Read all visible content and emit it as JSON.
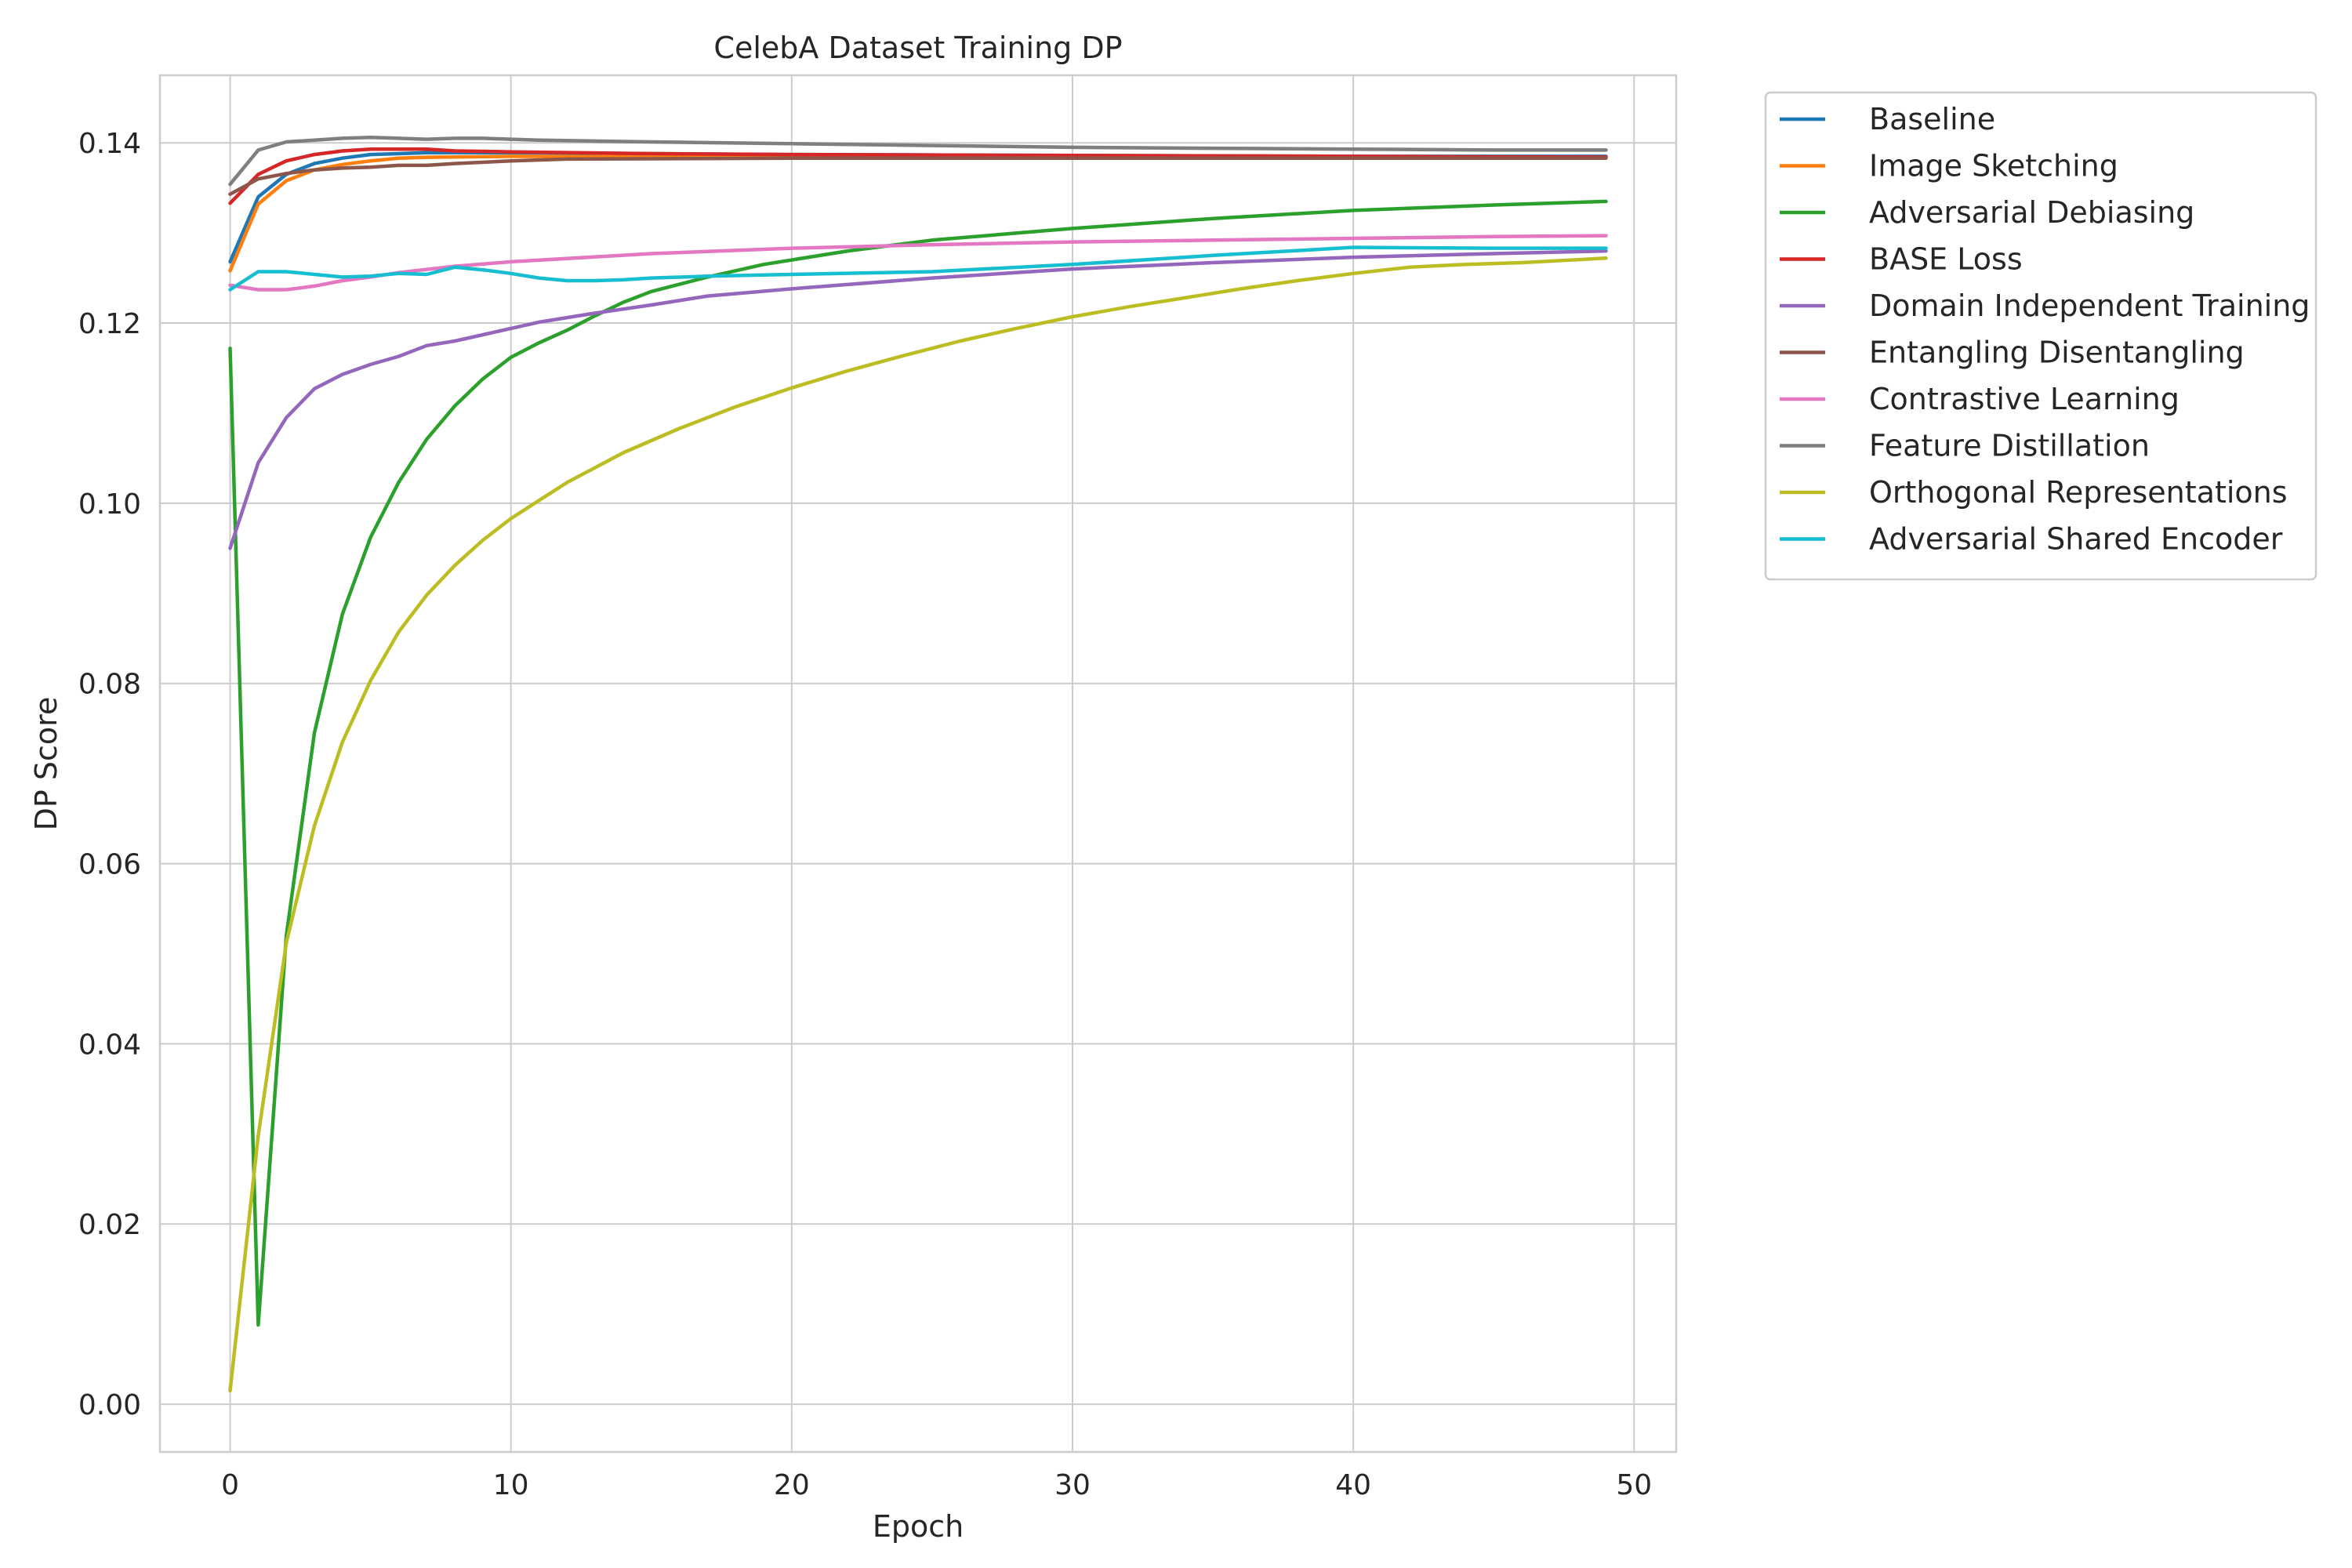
{
  "chart_data": {
    "type": "line",
    "title": "CelebA Dataset Training DP",
    "xlabel": "Epoch",
    "ylabel": "DP Score",
    "xlim": [
      -2.5,
      51.5
    ],
    "ylim": [
      -0.0053,
      0.1475
    ],
    "xticks": [
      0,
      10,
      20,
      30,
      40,
      50
    ],
    "xtick_labels": [
      "0",
      "10",
      "20",
      "30",
      "40",
      "50"
    ],
    "yticks": [
      0.0,
      0.02,
      0.04,
      0.06,
      0.08,
      0.1,
      0.12,
      0.14
    ],
    "ytick_labels": [
      "0.00",
      "0.02",
      "0.04",
      "0.06",
      "0.08",
      "0.10",
      "0.12",
      "0.14"
    ],
    "grid": true,
    "legend_position": "outside-top-right",
    "series": [
      {
        "name": "Baseline",
        "color": "#1f77b4",
        "points": [
          [
            0,
            0.1268
          ],
          [
            1,
            0.134
          ],
          [
            2,
            0.1365
          ],
          [
            3,
            0.1377
          ],
          [
            4,
            0.1383
          ],
          [
            5,
            0.1387
          ],
          [
            6,
            0.1388
          ],
          [
            7,
            0.1389
          ],
          [
            10,
            0.1389
          ],
          [
            20,
            0.1387
          ],
          [
            30,
            0.1386
          ],
          [
            40,
            0.1385
          ],
          [
            49,
            0.1385
          ]
        ]
      },
      {
        "name": "Image Sketching",
        "color": "#ff7f0e",
        "points": [
          [
            0,
            0.1258
          ],
          [
            1,
            0.1332
          ],
          [
            2,
            0.1358
          ],
          [
            3,
            0.137
          ],
          [
            4,
            0.1376
          ],
          [
            5,
            0.138
          ],
          [
            6,
            0.1383
          ],
          [
            7,
            0.1384
          ],
          [
            10,
            0.1385
          ],
          [
            20,
            0.1384
          ],
          [
            30,
            0.1384
          ],
          [
            40,
            0.1384
          ],
          [
            49,
            0.1384
          ]
        ]
      },
      {
        "name": "Adversarial Debiasing",
        "color": "#2ca02c",
        "points": [
          [
            0,
            0.1172
          ],
          [
            1,
            0.0088
          ],
          [
            2,
            0.052
          ],
          [
            3,
            0.0745
          ],
          [
            4,
            0.0877
          ],
          [
            5,
            0.0962
          ],
          [
            6,
            0.1023
          ],
          [
            7,
            0.1071
          ],
          [
            8,
            0.1108
          ],
          [
            9,
            0.1138
          ],
          [
            10,
            0.1162
          ],
          [
            11,
            0.1178
          ],
          [
            12,
            0.1192
          ],
          [
            13,
            0.1208
          ],
          [
            14,
            0.1223
          ],
          [
            15,
            0.1235
          ],
          [
            17,
            0.1251
          ],
          [
            19,
            0.1265
          ],
          [
            22,
            0.128
          ],
          [
            25,
            0.1292
          ],
          [
            30,
            0.1305
          ],
          [
            35,
            0.1316
          ],
          [
            40,
            0.1325
          ],
          [
            45,
            0.1331
          ],
          [
            49,
            0.1335
          ]
        ]
      },
      {
        "name": "BASE Loss",
        "color": "#d62728",
        "points": [
          [
            0,
            0.1333
          ],
          [
            1,
            0.1365
          ],
          [
            2,
            0.138
          ],
          [
            3,
            0.1387
          ],
          [
            4,
            0.1391
          ],
          [
            5,
            0.1393
          ],
          [
            6,
            0.1393
          ],
          [
            7,
            0.1393
          ],
          [
            8,
            0.1391
          ],
          [
            10,
            0.139
          ],
          [
            15,
            0.1388
          ],
          [
            20,
            0.1387
          ],
          [
            30,
            0.1386
          ],
          [
            40,
            0.1385
          ],
          [
            49,
            0.1384
          ]
        ]
      },
      {
        "name": "Domain Independent Training",
        "color": "#9467bd",
        "points": [
          [
            0,
            0.095
          ],
          [
            1,
            0.1045
          ],
          [
            2,
            0.1095
          ],
          [
            3,
            0.1127
          ],
          [
            4,
            0.1143
          ],
          [
            5,
            0.1154
          ],
          [
            6,
            0.1163
          ],
          [
            7,
            0.1175
          ],
          [
            8,
            0.118
          ],
          [
            9,
            0.1187
          ],
          [
            10,
            0.1194
          ],
          [
            11,
            0.1201
          ],
          [
            12,
            0.1206
          ],
          [
            13,
            0.1211
          ],
          [
            15,
            0.122
          ],
          [
            17,
            0.123
          ],
          [
            20,
            0.1238
          ],
          [
            25,
            0.125
          ],
          [
            30,
            0.126
          ],
          [
            35,
            0.1267
          ],
          [
            40,
            0.1273
          ],
          [
            45,
            0.1277
          ],
          [
            49,
            0.128
          ]
        ]
      },
      {
        "name": "Entangling Disentangling",
        "color": "#8c564b",
        "points": [
          [
            0,
            0.1343
          ],
          [
            1,
            0.136
          ],
          [
            2,
            0.1366
          ],
          [
            3,
            0.137
          ],
          [
            4,
            0.1372
          ],
          [
            5,
            0.1373
          ],
          [
            6,
            0.1375
          ],
          [
            7,
            0.1375
          ],
          [
            8,
            0.1377
          ],
          [
            10,
            0.138
          ],
          [
            12,
            0.1382
          ],
          [
            20,
            0.1383
          ],
          [
            30,
            0.1383
          ],
          [
            40,
            0.1383
          ],
          [
            49,
            0.1383
          ]
        ]
      },
      {
        "name": "Contrastive Learning",
        "color": "#e377c2",
        "points": [
          [
            0,
            0.1242
          ],
          [
            1,
            0.1237
          ],
          [
            2,
            0.1237
          ],
          [
            3,
            0.1241
          ],
          [
            4,
            0.1247
          ],
          [
            5,
            0.1251
          ],
          [
            6,
            0.1256
          ],
          [
            8,
            0.1263
          ],
          [
            10,
            0.1268
          ],
          [
            15,
            0.1277
          ],
          [
            20,
            0.1283
          ],
          [
            25,
            0.1287
          ],
          [
            30,
            0.129
          ],
          [
            35,
            0.1292
          ],
          [
            40,
            0.1294
          ],
          [
            45,
            0.1296
          ],
          [
            49,
            0.1297
          ]
        ]
      },
      {
        "name": "Feature Distillation",
        "color": "#7f7f7f",
        "points": [
          [
            0,
            0.1354
          ],
          [
            1,
            0.1392
          ],
          [
            2,
            0.1401
          ],
          [
            3,
            0.1403
          ],
          [
            4,
            0.1405
          ],
          [
            5,
            0.1406
          ],
          [
            6,
            0.1405
          ],
          [
            7,
            0.1404
          ],
          [
            8,
            0.1405
          ],
          [
            9,
            0.1405
          ],
          [
            10,
            0.1404
          ],
          [
            11,
            0.1403
          ],
          [
            13,
            0.1402
          ],
          [
            15,
            0.1401
          ],
          [
            20,
            0.1399
          ],
          [
            25,
            0.1397
          ],
          [
            30,
            0.1395
          ],
          [
            35,
            0.1394
          ],
          [
            40,
            0.1393
          ],
          [
            45,
            0.1392
          ],
          [
            49,
            0.1392
          ]
        ]
      },
      {
        "name": "Orthogonal Representations",
        "color": "#bcbd22",
        "points": [
          [
            0,
            0.0015
          ],
          [
            1,
            0.0298
          ],
          [
            2,
            0.0512
          ],
          [
            3,
            0.0642
          ],
          [
            4,
            0.0735
          ],
          [
            5,
            0.0803
          ],
          [
            6,
            0.0857
          ],
          [
            7,
            0.0898
          ],
          [
            8,
            0.0931
          ],
          [
            9,
            0.0959
          ],
          [
            10,
            0.0983
          ],
          [
            12,
            0.1023
          ],
          [
            14,
            0.1056
          ],
          [
            16,
            0.1083
          ],
          [
            18,
            0.1107
          ],
          [
            20,
            0.1128
          ],
          [
            22,
            0.1147
          ],
          [
            24,
            0.1164
          ],
          [
            26,
            0.118
          ],
          [
            28,
            0.1194
          ],
          [
            30,
            0.1207
          ],
          [
            32,
            0.1218
          ],
          [
            34,
            0.1228
          ],
          [
            36,
            0.1238
          ],
          [
            38,
            0.1247
          ],
          [
            40,
            0.1255
          ],
          [
            42,
            0.1262
          ],
          [
            44,
            0.1265
          ],
          [
            46,
            0.1267
          ],
          [
            49,
            0.1272
          ]
        ]
      },
      {
        "name": "Adversarial Shared Encoder",
        "color": "#17becf",
        "points": [
          [
            0,
            0.1237
          ],
          [
            1,
            0.1257
          ],
          [
            2,
            0.1257
          ],
          [
            3,
            0.1254
          ],
          [
            4,
            0.1251
          ],
          [
            5,
            0.1252
          ],
          [
            6,
            0.1255
          ],
          [
            7,
            0.1254
          ],
          [
            8,
            0.1262
          ],
          [
            9,
            0.1259
          ],
          [
            10,
            0.1255
          ],
          [
            11,
            0.125
          ],
          [
            12,
            0.1247
          ],
          [
            13,
            0.1247
          ],
          [
            14,
            0.1248
          ],
          [
            15,
            0.125
          ],
          [
            17,
            0.1252
          ],
          [
            20,
            0.1254
          ],
          [
            25,
            0.1257
          ],
          [
            30,
            0.1265
          ],
          [
            35,
            0.1275
          ],
          [
            40,
            0.1284
          ],
          [
            45,
            0.1283
          ],
          [
            49,
            0.1283
          ]
        ]
      }
    ]
  }
}
